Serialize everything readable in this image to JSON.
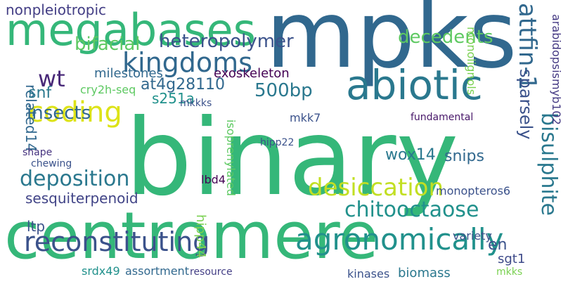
{
  "words": [
    {
      "text": "binary",
      "color": "#35b779"
    },
    {
      "text": "mpks",
      "color": "#31688e"
    },
    {
      "text": "centromere",
      "color": "#35b779"
    },
    {
      "text": "megabases",
      "color": "#35b779"
    },
    {
      "text": "abiotic",
      "color": "#2a788e"
    },
    {
      "text": "reconstituting",
      "color": "#3b528b"
    },
    {
      "text": "agronomically",
      "color": "#21918c"
    },
    {
      "text": "kingdoms",
      "color": "#31688e"
    },
    {
      "text": "coding",
      "color": "#dde318"
    },
    {
      "text": "desiccation",
      "color": "#c2df23"
    },
    {
      "text": "chitooctaose",
      "color": "#21918c"
    },
    {
      "text": "deposition",
      "color": "#2a788e"
    },
    {
      "text": "insects",
      "color": "#31688e"
    },
    {
      "text": "heteropolymer",
      "color": "#3b528b"
    },
    {
      "text": "bifacial",
      "color": "#5ec962"
    },
    {
      "text": "decedents",
      "color": "#5ec962"
    },
    {
      "text": "nonpleiotropic",
      "color": "#433e85"
    },
    {
      "text": "500bp",
      "color": "#2a788e"
    },
    {
      "text": "at4g28110",
      "color": "#31688e"
    },
    {
      "text": "s251a",
      "color": "#21918c"
    },
    {
      "text": "wt",
      "color": "#482878"
    },
    {
      "text": "attfin-1",
      "color": "#31688e"
    },
    {
      "text": "sparsely",
      "color": "#3b528b"
    },
    {
      "text": "bisulphite",
      "color": "#2a788e"
    },
    {
      "text": "monolignols",
      "color": "#7ad151"
    },
    {
      "text": "arabidopsismyb102",
      "color": "#443983"
    },
    {
      "text": "related14",
      "color": "#31688e"
    },
    {
      "text": "sesquiterpenoid",
      "color": "#414487"
    },
    {
      "text": "exoskeleton",
      "color": "#440154"
    },
    {
      "text": "milestones",
      "color": "#31688e"
    },
    {
      "text": "snf",
      "color": "#2a788e"
    },
    {
      "text": "cry2h-seq",
      "color": "#5ec962"
    },
    {
      "text": "mkkks",
      "color": "#3b528b"
    },
    {
      "text": "wox14",
      "color": "#2a788e"
    },
    {
      "text": "snips",
      "color": "#31688e"
    },
    {
      "text": "en",
      "color": "#3b528b"
    },
    {
      "text": "sgt1",
      "color": "#3e4a89"
    },
    {
      "text": "ltp",
      "color": "#3b528b"
    },
    {
      "text": "mkks",
      "color": "#7ad151"
    },
    {
      "text": "kinases",
      "color": "#3b528b"
    },
    {
      "text": "biomass",
      "color": "#2a788e"
    },
    {
      "text": "variety",
      "color": "#3b528b"
    },
    {
      "text": "isoprenylated",
      "color": "#5ec962"
    },
    {
      "text": "monopteros6",
      "color": "#3b528b"
    },
    {
      "text": "lbd4",
      "color": "#440154"
    },
    {
      "text": "hipp44",
      "color": "#7ad151"
    },
    {
      "text": "shape",
      "color": "#46337f"
    },
    {
      "text": "chewing",
      "color": "#3b528b"
    },
    {
      "text": "srdx49",
      "color": "#21918c"
    },
    {
      "text": "assortment",
      "color": "#31688e"
    },
    {
      "text": "resource",
      "color": "#433e85"
    },
    {
      "text": "mkk7",
      "color": "#3b528b"
    },
    {
      "text": "hipp22",
      "color": "#3b528b"
    },
    {
      "text": "fundamental",
      "color": "#481769"
    }
  ]
}
